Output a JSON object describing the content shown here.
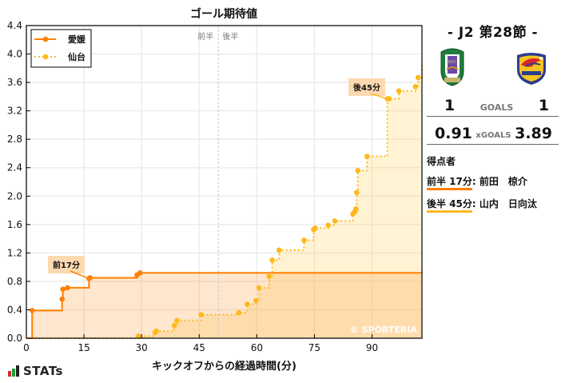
{
  "title": "ゴール期待値",
  "half_labels": {
    "first": "前半",
    "second": "後半"
  },
  "legend": [
    {
      "name": "愛媛",
      "color": "#ff8000",
      "style": "solid"
    },
    {
      "name": "仙台",
      "color": "#ffb81c",
      "style": "dotted"
    }
  ],
  "annotations": [
    {
      "text": "前17分",
      "team": "愛媛"
    },
    {
      "text": "後45分",
      "team": "仙台"
    }
  ],
  "watermark": "© SPORTERIA",
  "xlabel": "キックオフからの経過時間(分)",
  "sidebar": {
    "round": "- J2 第28節 -",
    "home_team_logo": "ehime-fc-crest",
    "away_team_logo": "vegalta-sendai-crest",
    "goals_label": "GOALS",
    "home_goals": "1",
    "away_goals": "1",
    "xgoals_label": "xGOALS",
    "home_xg": "0.91",
    "away_xg": "3.89",
    "scorers_title": "得点者",
    "scorers": [
      {
        "time": "前半 17分",
        "name": ": 前田　椋介",
        "color": "#ff8000"
      },
      {
        "time": "後半 45分",
        "name": ": 山内　日向汰",
        "color": "#ffb81c"
      }
    ]
  },
  "footer_brand": "STATs",
  "chart_data": {
    "type": "line",
    "title": "ゴール期待値",
    "xlabel": "キックオフからの経過時間(分)",
    "ylabel": "",
    "xlim": [
      0,
      103
    ],
    "ylim": [
      0,
      4.4
    ],
    "x_ticks": [
      0,
      15,
      30,
      45,
      60,
      75,
      90
    ],
    "y_ticks": [
      0.0,
      0.4,
      0.8,
      1.2,
      1.6,
      2.0,
      2.4,
      2.8,
      3.2,
      3.6,
      4.0,
      4.4
    ],
    "grid": true,
    "legend_position": "upper left",
    "step": true,
    "series": [
      {
        "name": "愛媛",
        "color": "#ff8000",
        "line": "solid",
        "x": [
          0,
          1.5,
          9.3,
          9.5,
          10.7,
          16.3,
          16.6,
          28.8,
          29.6,
          103
        ],
        "y": [
          0.0,
          0.39,
          0.55,
          0.69,
          0.71,
          0.84,
          0.85,
          0.89,
          0.92,
          0.92
        ]
      },
      {
        "name": "仙台",
        "color": "#ffb81c",
        "line": "dotted",
        "x": [
          0,
          29.2,
          33.5,
          33.8,
          38.5,
          39.2,
          45.5,
          55.3,
          57.5,
          59.8,
          60.6,
          63.2,
          64.0,
          65.8,
          72.3,
          74.8,
          75.2,
          78.6,
          80.3,
          85.0,
          85.5,
          85.8,
          86.0,
          86.3,
          88.7,
          94.0,
          94.5,
          97.0,
          101.3,
          102.0,
          103.0
        ],
        "y": [
          0.0,
          0.03,
          0.08,
          0.1,
          0.18,
          0.25,
          0.33,
          0.36,
          0.48,
          0.53,
          0.71,
          0.87,
          1.1,
          1.24,
          1.38,
          1.53,
          1.55,
          1.59,
          1.65,
          1.75,
          1.78,
          1.82,
          2.05,
          2.36,
          2.56,
          3.37,
          3.37,
          3.48,
          3.54,
          3.67,
          3.88
        ]
      }
    ],
    "vline": {
      "x": 50,
      "style": "dashed",
      "color": "#cccccc",
      "labels": [
        "前半",
        "後半"
      ]
    },
    "annotations": [
      {
        "text": "前17分",
        "x": 16.3,
        "y": 0.84,
        "series": "愛媛"
      },
      {
        "text": "後45分",
        "x": 94.0,
        "y": 3.37,
        "series": "仙台"
      }
    ]
  }
}
